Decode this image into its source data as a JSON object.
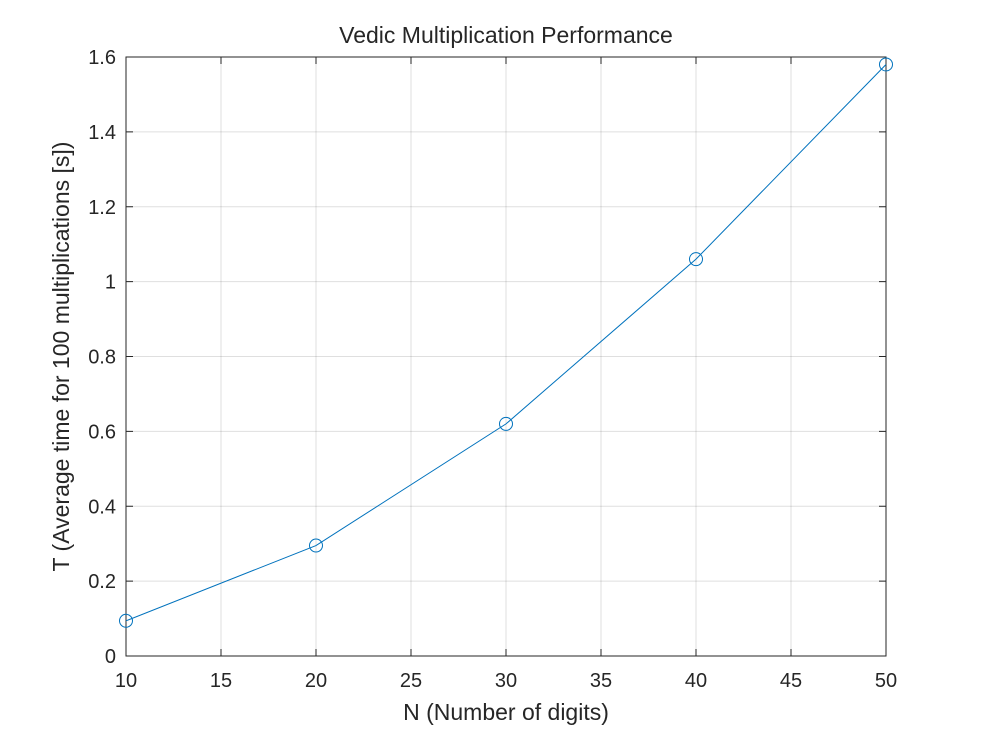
{
  "chart_data": {
    "type": "line",
    "title": "Vedic Multiplication Performance",
    "xlabel": "N (Number of digits)",
    "ylabel": "T (Average time for 100 multiplications [s])",
    "xlim": [
      10,
      50
    ],
    "ylim": [
      0,
      1.6
    ],
    "xticks": [
      10,
      15,
      20,
      25,
      30,
      35,
      40,
      45,
      50
    ],
    "yticks": [
      0,
      0.2,
      0.4,
      0.6,
      0.8,
      1,
      1.2,
      1.4,
      1.6
    ],
    "xtick_labels": [
      "10",
      "15",
      "20",
      "25",
      "30",
      "35",
      "40",
      "45",
      "50"
    ],
    "ytick_labels": [
      "0",
      "0.2",
      "0.4",
      "0.6",
      "0.8",
      "1",
      "1.2",
      "1.4",
      "1.6"
    ],
    "grid": true,
    "series": [
      {
        "x": [
          10,
          20,
          30,
          40,
          50
        ],
        "y": [
          0.094,
          0.295,
          0.62,
          1.06,
          1.58
        ],
        "color": "#0072BD",
        "marker": "circle"
      }
    ]
  }
}
